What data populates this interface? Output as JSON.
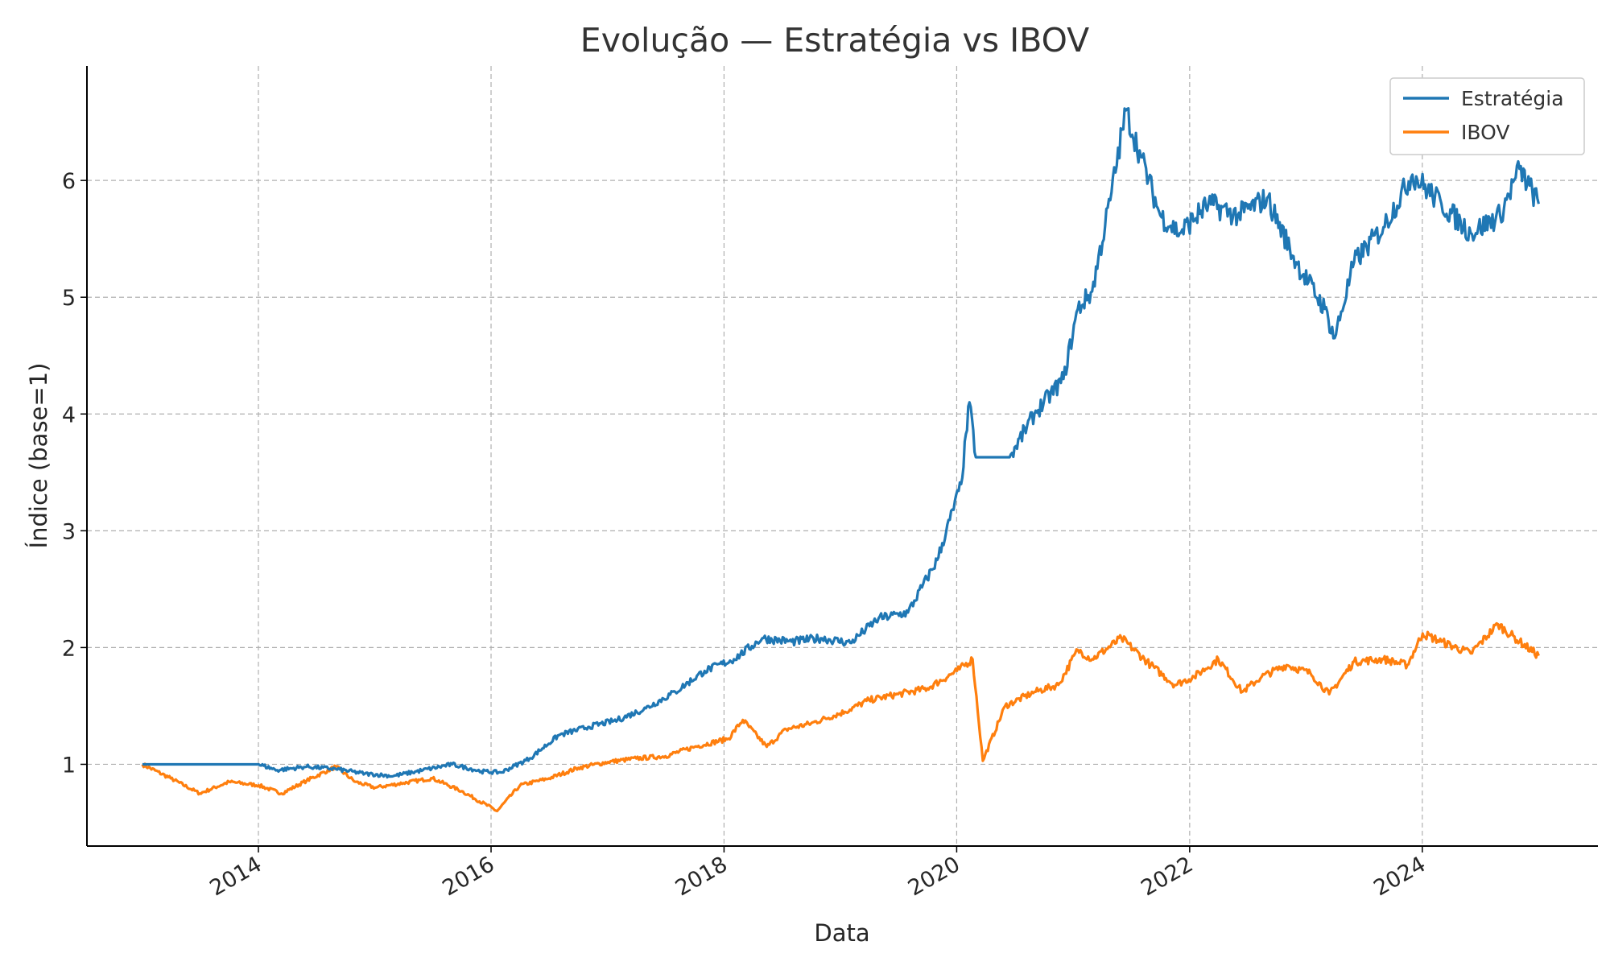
{
  "chart_data": {
    "type": "line",
    "title": "Evolução — Estratégia vs IBOV",
    "xlabel": "Data",
    "ylabel": "Índice (base=1)",
    "x_axis": "date",
    "xlim": [
      "2012-07-12",
      "2025-07-05"
    ],
    "ylim": [
      0.3,
      6.98
    ],
    "xticks": [
      "2014",
      "2016",
      "2018",
      "2020",
      "2022",
      "2024"
    ],
    "yticks": [
      "1",
      "2",
      "3",
      "4",
      "5",
      "6"
    ],
    "grid": true,
    "legend_position": "top-right",
    "series": [
      {
        "name": "Estratégia",
        "color": "#1f77b4",
        "x": [
          "2013-01-02",
          "2013-07-01",
          "2014-01-02",
          "2014-03-01",
          "2014-06-01",
          "2014-09-01",
          "2014-12-01",
          "2015-03-01",
          "2015-06-01",
          "2015-09-01",
          "2015-12-01",
          "2016-02-01",
          "2016-05-01",
          "2016-08-01",
          "2016-11-01",
          "2017-02-01",
          "2017-05-01",
          "2017-08-01",
          "2017-11-01",
          "2018-02-01",
          "2018-05-01",
          "2018-08-01",
          "2018-11-01",
          "2019-02-01",
          "2019-05-01",
          "2019-08-01",
          "2019-11-01",
          "2020-01-15",
          "2020-02-10",
          "2020-03-01",
          "2020-06-15",
          "2020-09-01",
          "2020-12-01",
          "2021-01-15",
          "2021-03-01",
          "2021-05-01",
          "2021-06-15",
          "2021-08-01",
          "2021-10-01",
          "2021-12-01",
          "2022-03-01",
          "2022-06-01",
          "2022-09-01",
          "2022-12-01",
          "2023-03-01",
          "2023-04-01",
          "2023-06-01",
          "2023-09-01",
          "2023-12-01",
          "2024-03-01",
          "2024-06-01",
          "2024-09-01",
          "2024-11-01",
          "2024-12-31"
        ],
        "values": [
          1.0,
          1.0,
          1.0,
          0.95,
          0.98,
          0.96,
          0.92,
          0.9,
          0.95,
          1.0,
          0.94,
          0.93,
          1.05,
          1.25,
          1.32,
          1.38,
          1.48,
          1.62,
          1.8,
          1.9,
          2.08,
          2.05,
          2.08,
          2.04,
          2.25,
          2.3,
          2.75,
          3.4,
          4.1,
          3.63,
          3.63,
          4.0,
          4.3,
          4.9,
          5.05,
          5.9,
          6.6,
          6.2,
          5.7,
          5.55,
          5.8,
          5.7,
          5.85,
          5.3,
          4.9,
          4.65,
          5.3,
          5.6,
          6.05,
          5.8,
          5.55,
          5.7,
          6.1,
          5.8
        ]
      },
      {
        "name": "IBOV",
        "color": "#ff7f0e",
        "x": [
          "2013-01-02",
          "2013-04-01",
          "2013-07-01",
          "2013-10-01",
          "2014-01-02",
          "2014-03-15",
          "2014-06-01",
          "2014-09-01",
          "2014-11-01",
          "2015-01-02",
          "2015-04-01",
          "2015-07-01",
          "2015-10-01",
          "2016-01-20",
          "2016-04-01",
          "2016-07-01",
          "2016-10-01",
          "2017-01-02",
          "2017-04-01",
          "2017-07-01",
          "2017-10-01",
          "2018-01-15",
          "2018-03-01",
          "2018-05-15",
          "2018-07-15",
          "2018-10-01",
          "2019-01-15",
          "2019-04-01",
          "2019-07-01",
          "2019-10-01",
          "2020-01-02",
          "2020-02-20",
          "2020-03-23",
          "2020-06-01",
          "2020-09-01",
          "2020-11-15",
          "2021-01-15",
          "2021-03-01",
          "2021-06-01",
          "2021-09-01",
          "2021-11-15",
          "2022-01-15",
          "2022-04-01",
          "2022-06-15",
          "2022-08-15",
          "2022-11-01",
          "2023-01-15",
          "2023-03-15",
          "2023-06-01",
          "2023-09-01",
          "2023-11-15",
          "2024-01-02",
          "2024-03-01",
          "2024-06-01",
          "2024-08-25",
          "2024-11-01",
          "2024-12-31"
        ],
        "values": [
          1.0,
          0.88,
          0.75,
          0.85,
          0.82,
          0.75,
          0.86,
          0.98,
          0.85,
          0.8,
          0.84,
          0.88,
          0.77,
          0.6,
          0.82,
          0.88,
          0.97,
          1.02,
          1.05,
          1.07,
          1.15,
          1.22,
          1.38,
          1.15,
          1.3,
          1.35,
          1.45,
          1.55,
          1.6,
          1.65,
          1.8,
          1.9,
          1.03,
          1.5,
          1.62,
          1.68,
          1.98,
          1.9,
          2.08,
          1.85,
          1.68,
          1.75,
          1.9,
          1.62,
          1.75,
          1.85,
          1.78,
          1.6,
          1.88,
          1.9,
          1.85,
          2.12,
          2.05,
          1.95,
          2.2,
          2.05,
          1.93
        ]
      }
    ]
  }
}
